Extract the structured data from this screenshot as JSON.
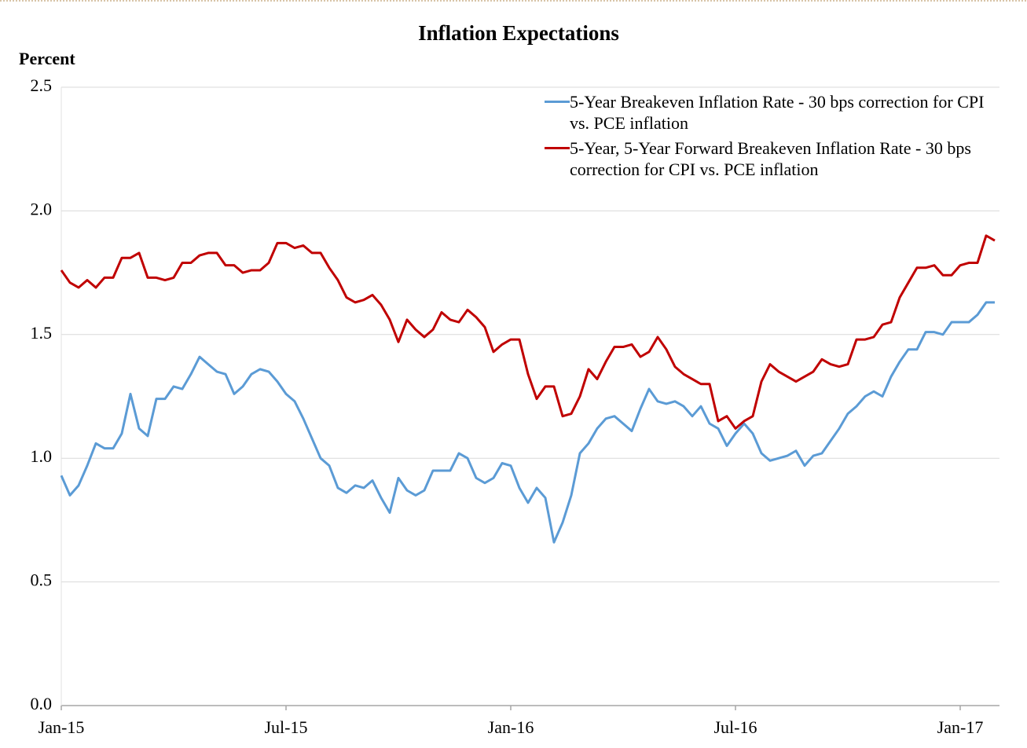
{
  "chart_data": {
    "type": "line",
    "title": "Inflation Expectations",
    "y_label": "Percent",
    "categories": [
      "Jan-15",
      null,
      null,
      null,
      null,
      null,
      null,
      null,
      null,
      null,
      null,
      null,
      null,
      null,
      null,
      null,
      null,
      null,
      null,
      null,
      null,
      null,
      null,
      null,
      null,
      null,
      "Jul-15",
      null,
      null,
      null,
      null,
      null,
      null,
      null,
      null,
      null,
      null,
      null,
      null,
      null,
      null,
      null,
      null,
      null,
      null,
      null,
      null,
      null,
      null,
      null,
      null,
      null,
      "Jan-16",
      null,
      null,
      null,
      null,
      null,
      null,
      null,
      null,
      null,
      null,
      null,
      null,
      null,
      null,
      null,
      null,
      null,
      null,
      null,
      null,
      null,
      null,
      null,
      null,
      null,
      "Jul-16",
      null,
      null,
      null,
      null,
      null,
      null,
      null,
      null,
      null,
      null,
      null,
      null,
      null,
      null,
      null,
      null,
      null,
      null,
      null,
      null,
      null,
      null,
      null,
      null,
      null,
      "Jan-17",
      null,
      null,
      null,
      null
    ],
    "series": [
      {
        "name": "5-Year Breakeven Inflation Rate - 30 bps correction for CPI vs. PCE inflation",
        "color": "#5b9bd5",
        "values": [
          0.93,
          0.85,
          0.89,
          0.97,
          1.06,
          1.04,
          1.04,
          1.1,
          1.26,
          1.12,
          1.09,
          1.24,
          1.24,
          1.29,
          1.28,
          1.34,
          1.41,
          1.38,
          1.35,
          1.34,
          1.26,
          1.29,
          1.34,
          1.36,
          1.35,
          1.31,
          1.26,
          1.23,
          1.16,
          1.08,
          1.0,
          0.97,
          0.88,
          0.86,
          0.89,
          0.88,
          0.91,
          0.84,
          0.78,
          0.92,
          0.87,
          0.85,
          0.87,
          0.95,
          0.95,
          0.95,
          1.02,
          1.0,
          0.92,
          0.9,
          0.92,
          0.98,
          0.97,
          0.88,
          0.82,
          0.88,
          0.84,
          0.66,
          0.74,
          0.85,
          1.02,
          1.06,
          1.12,
          1.16,
          1.17,
          1.14,
          1.11,
          1.2,
          1.28,
          1.23,
          1.22,
          1.23,
          1.21,
          1.17,
          1.21,
          1.14,
          1.12,
          1.05,
          1.1,
          1.14,
          1.1,
          1.02,
          0.99,
          1.0,
          1.01,
          1.03,
          0.97,
          1.01,
          1.02,
          1.07,
          1.12,
          1.18,
          1.21,
          1.25,
          1.27,
          1.25,
          1.33,
          1.39,
          1.44,
          1.44,
          1.51,
          1.51,
          1.5,
          1.55,
          1.55,
          1.55,
          1.58,
          1.63,
          1.63
        ]
      },
      {
        "name": "5-Year, 5-Year Forward Breakeven Inflation Rate - 30 bps correction for CPI vs. PCE inflation",
        "color": "#c00000",
        "values": [
          1.76,
          1.71,
          1.69,
          1.72,
          1.69,
          1.73,
          1.73,
          1.81,
          1.81,
          1.83,
          1.73,
          1.73,
          1.72,
          1.73,
          1.79,
          1.79,
          1.82,
          1.83,
          1.83,
          1.78,
          1.78,
          1.75,
          1.76,
          1.76,
          1.79,
          1.87,
          1.87,
          1.85,
          1.86,
          1.83,
          1.83,
          1.77,
          1.72,
          1.65,
          1.63,
          1.64,
          1.66,
          1.62,
          1.56,
          1.47,
          1.56,
          1.52,
          1.49,
          1.52,
          1.59,
          1.56,
          1.55,
          1.6,
          1.57,
          1.53,
          1.43,
          1.46,
          1.48,
          1.48,
          1.34,
          1.24,
          1.29,
          1.29,
          1.17,
          1.18,
          1.25,
          1.36,
          1.32,
          1.39,
          1.45,
          1.45,
          1.46,
          1.41,
          1.43,
          1.49,
          1.44,
          1.37,
          1.34,
          1.32,
          1.3,
          1.3,
          1.15,
          1.17,
          1.12,
          1.15,
          1.17,
          1.31,
          1.38,
          1.35,
          1.33,
          1.31,
          1.33,
          1.35,
          1.4,
          1.38,
          1.37,
          1.38,
          1.48,
          1.48,
          1.49,
          1.54,
          1.55,
          1.65,
          1.71,
          1.77,
          1.77,
          1.78,
          1.74,
          1.74,
          1.78,
          1.79,
          1.79,
          1.9,
          1.88
        ]
      }
    ],
    "ylim": [
      0,
      2.5
    ],
    "yticks": [
      {
        "value": 0,
        "label": "0.0"
      },
      0.5,
      {
        "value": 1,
        "label": "1.0"
      },
      1.5,
      {
        "value": 2,
        "label": "2.0"
      },
      2.5
    ],
    "grid": true,
    "legend": "top-right"
  }
}
